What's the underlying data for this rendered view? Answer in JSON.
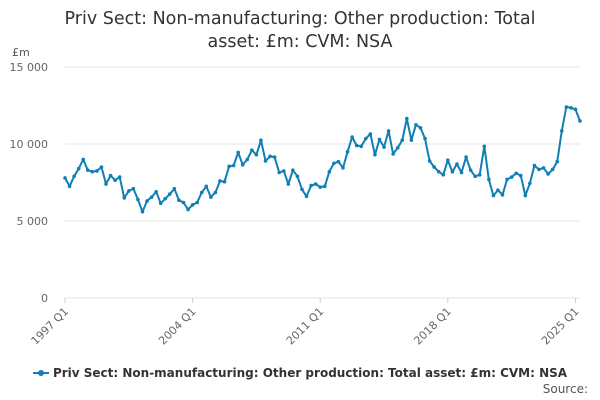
{
  "chart_data": {
    "type": "line",
    "title": "Priv Sect: Non-manufacturing: Other production: Total asset: £m: CVM: NSA",
    "ylabel": "£m",
    "ylim": [
      0,
      15000
    ],
    "yticks": [
      0,
      5000,
      10000,
      15000
    ],
    "ytick_labels": [
      "0",
      "5 000",
      "10 000",
      "15 000"
    ],
    "xtick_labels": [
      "1997 Q1",
      "2004 Q1",
      "2011 Q1",
      "2018 Q1",
      "2025 Q1"
    ],
    "grid": true,
    "legend_position": "bottom",
    "series_color": "#0f7fb4",
    "series": [
      {
        "name": "Priv Sect: Non-manufacturing: Other production: Total asset: £m: CVM: NSA",
        "x": [
          "1997 Q1",
          "1997 Q2",
          "1997 Q3",
          "1997 Q4",
          "1998 Q1",
          "1998 Q2",
          "1998 Q3",
          "1998 Q4",
          "1999 Q1",
          "1999 Q2",
          "1999 Q3",
          "1999 Q4",
          "2000 Q1",
          "2000 Q2",
          "2000 Q3",
          "2000 Q4",
          "2001 Q1",
          "2001 Q2",
          "2001 Q3",
          "2001 Q4",
          "2002 Q1",
          "2002 Q2",
          "2002 Q3",
          "2002 Q4",
          "2003 Q1",
          "2003 Q2",
          "2003 Q3",
          "2003 Q4",
          "2004 Q1",
          "2004 Q2",
          "2004 Q3",
          "2004 Q4",
          "2005 Q1",
          "2005 Q2",
          "2005 Q3",
          "2005 Q4",
          "2006 Q1",
          "2006 Q2",
          "2006 Q3",
          "2006 Q4",
          "2007 Q1",
          "2007 Q2",
          "2007 Q3",
          "2007 Q4",
          "2008 Q1",
          "2008 Q2",
          "2008 Q3",
          "2008 Q4",
          "2009 Q1",
          "2009 Q2",
          "2009 Q3",
          "2009 Q4",
          "2010 Q1",
          "2010 Q2",
          "2010 Q3",
          "2010 Q4",
          "2011 Q1",
          "2011 Q2",
          "2011 Q3",
          "2011 Q4",
          "2012 Q1",
          "2012 Q2",
          "2012 Q3",
          "2012 Q4",
          "2013 Q1",
          "2013 Q2",
          "2013 Q3",
          "2013 Q4",
          "2014 Q1",
          "2014 Q2",
          "2014 Q3",
          "2014 Q4",
          "2015 Q1",
          "2015 Q2",
          "2015 Q3",
          "2015 Q4",
          "2016 Q1",
          "2016 Q2",
          "2016 Q3",
          "2016 Q4",
          "2017 Q1",
          "2017 Q2",
          "2017 Q3",
          "2017 Q4",
          "2018 Q1",
          "2018 Q2",
          "2018 Q3",
          "2018 Q4",
          "2019 Q1",
          "2019 Q2",
          "2019 Q3",
          "2019 Q4",
          "2020 Q1",
          "2020 Q2",
          "2020 Q3",
          "2020 Q4",
          "2021 Q1",
          "2021 Q2",
          "2021 Q3",
          "2021 Q4",
          "2022 Q1",
          "2022 Q2",
          "2022 Q3",
          "2022 Q4",
          "2023 Q1",
          "2023 Q2",
          "2023 Q3",
          "2023 Q4",
          "2024 Q1",
          "2024 Q2",
          "2024 Q3",
          "2024 Q4",
          "2025 Q1",
          "2025 Q2"
        ],
        "values": [
          7800,
          7250,
          7900,
          8400,
          9000,
          8300,
          8200,
          8250,
          8500,
          7400,
          7950,
          7650,
          7850,
          6500,
          6950,
          7100,
          6400,
          5600,
          6300,
          6550,
          6900,
          6150,
          6450,
          6750,
          7100,
          6350,
          6200,
          5750,
          6050,
          6200,
          6850,
          7250,
          6550,
          6850,
          7600,
          7550,
          8550,
          8600,
          9450,
          8650,
          9000,
          9600,
          9300,
          10250,
          8900,
          9200,
          9150,
          8150,
          8250,
          7400,
          8300,
          7900,
          7050,
          6600,
          7300,
          7400,
          7200,
          7250,
          8200,
          8750,
          8850,
          8450,
          9500,
          10450,
          9900,
          9850,
          10350,
          10650,
          9300,
          10300,
          9800,
          10850,
          9350,
          9750,
          10250,
          11650,
          10250,
          11250,
          11050,
          10350,
          8900,
          8500,
          8200,
          8000,
          8950,
          8200,
          8700,
          8150,
          9150,
          8300,
          7900,
          8000,
          9850,
          7700,
          6650,
          7000,
          6700,
          7700,
          7850,
          8100,
          7950,
          6650,
          7450,
          8600,
          8350,
          8450,
          8050,
          8350,
          8850,
          10850,
          12400,
          12350,
          12250,
          11500
        ]
      }
    ]
  },
  "legend": {
    "label": "Priv Sect: Non-manufacturing: Other production: Total asset: £m: CVM: NSA"
  },
  "source_label": "Source:"
}
